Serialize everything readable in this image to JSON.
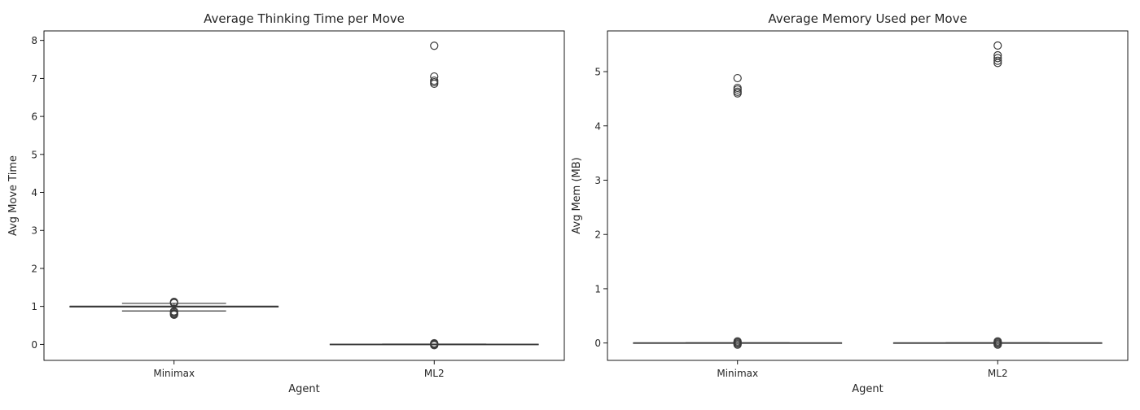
{
  "chart_data": [
    {
      "type": "box",
      "title": "Average Thinking Time per Move",
      "xlabel": "Agent",
      "ylabel": "Avg Move Time",
      "categories": [
        "Minimax",
        "ML2"
      ],
      "ylim": [
        -0.42,
        8.25
      ],
      "yticks": [
        0,
        1,
        2,
        3,
        4,
        5,
        6,
        7,
        8
      ],
      "grid": false,
      "box_color": "#3a3a3a",
      "boxes": [
        {
          "category": "Minimax",
          "q1": 0.985,
          "median": 1.0,
          "q3": 1.005,
          "whisker_low": 0.88,
          "whisker_high": 1.08,
          "outliers": [
            0.78,
            0.8,
            0.82,
            0.85,
            0.87,
            1.09,
            1.1,
            1.12
          ]
        },
        {
          "category": "ML2",
          "q1": 0.0,
          "median": 0.0,
          "q3": 0.005,
          "whisker_low": 0.0,
          "whisker_high": 0.01,
          "outliers": [
            -0.02,
            0.0,
            0.02,
            0.03,
            6.86,
            6.9,
            6.94,
            7.05,
            7.86
          ]
        }
      ]
    },
    {
      "type": "box",
      "title": "Average Memory Used per Move",
      "xlabel": "Agent",
      "ylabel": "Avg Mem (MB)",
      "categories": [
        "Minimax",
        "ML2"
      ],
      "ylim": [
        -0.32,
        5.75
      ],
      "yticks": [
        0,
        1,
        2,
        3,
        4,
        5
      ],
      "grid": false,
      "box_color": "#3a3a3a",
      "boxes": [
        {
          "category": "Minimax",
          "q1": 0.0,
          "median": 0.0,
          "q3": 0.003,
          "whisker_low": 0.0,
          "whisker_high": 0.005,
          "outliers": [
            -0.03,
            -0.01,
            0.01,
            0.03,
            4.6,
            4.63,
            4.67,
            4.7,
            4.88
          ]
        },
        {
          "category": "ML2",
          "q1": 0.0,
          "median": 0.0,
          "q3": 0.003,
          "whisker_low": 0.0,
          "whisker_high": 0.005,
          "outliers": [
            -0.03,
            -0.01,
            0.01,
            0.03,
            5.16,
            5.2,
            5.25,
            5.3,
            5.48
          ]
        }
      ]
    }
  ]
}
